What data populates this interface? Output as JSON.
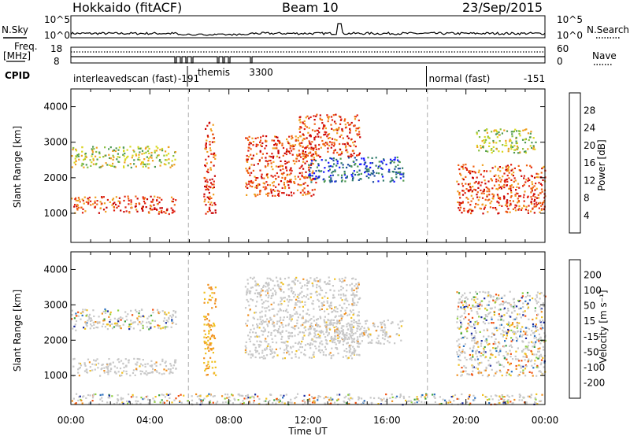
{
  "header": {
    "station": "Hokkaido (fitACF)",
    "beam": "Beam 10",
    "date": "23/Sep/2015"
  },
  "top_panels": {
    "nsky_label": "N.Sky",
    "nsearch_label": "N.Search",
    "freq_label": "Freq.",
    "freq_unit": "[MHz]",
    "nave_label": "Nave",
    "cpid_label": "CPID",
    "left_ticks_counts": [
      "10^5",
      "10^0"
    ],
    "right_ticks_counts": [
      "10^5",
      "10^0"
    ],
    "left_ticks_freq": [
      "18",
      "8"
    ],
    "right_ticks_nave": [
      "60",
      "0"
    ]
  },
  "cpid_segments": [
    {
      "label": "interleavedscan (fast)",
      "start_hour": 0.0
    },
    {
      "label": "-191",
      "start_hour": 5.3
    },
    {
      "label": "themis",
      "start_hour": 6.3
    },
    {
      "label": "3300",
      "start_hour": 8.9
    },
    {
      "label": "normal (fast)",
      "start_hour": 18.0
    },
    {
      "label": "-151",
      "start_hour": 22.8
    }
  ],
  "chart_data": [
    {
      "type": "heatmap",
      "title": "Power",
      "ylabel": "Slant Range [km]",
      "xlabel": "",
      "xlim": [
        0,
        24
      ],
      "ylim": [
        180,
        4500
      ],
      "yticks": [
        "1000",
        "2000",
        "3000",
        "4000"
      ],
      "colorbar_label": "Power [dB]",
      "colorbar_ticks": [
        "4",
        "8",
        "12",
        "16",
        "20",
        "24",
        "28"
      ],
      "colorbar_colors": [
        "#1414ff",
        "#1f4fa0",
        "#2e7a6a",
        "#4f9a50",
        "#88c040",
        "#d8d820",
        "#f0a020",
        "#f06010",
        "#e02010",
        "#c80000"
      ],
      "bands": [
        {
          "x_start": 0.0,
          "x_end": 5.3,
          "range_low": 1000,
          "range_high": 1500,
          "level": "high"
        },
        {
          "x_start": 0.0,
          "x_end": 5.3,
          "range_low": 2300,
          "range_high": 2900,
          "level": "mid"
        },
        {
          "x_start": 6.7,
          "x_end": 7.3,
          "range_low": 1000,
          "range_high": 3600,
          "level": "high"
        },
        {
          "x_start": 8.8,
          "x_end": 12.4,
          "range_low": 1500,
          "range_high": 3200,
          "level": "high"
        },
        {
          "x_start": 11.5,
          "x_end": 14.6,
          "range_low": 2600,
          "range_high": 3800,
          "level": "high"
        },
        {
          "x_start": 12.0,
          "x_end": 16.8,
          "range_low": 1900,
          "range_high": 2600,
          "level": "low"
        },
        {
          "x_start": 19.5,
          "x_end": 24.0,
          "range_low": 1000,
          "range_high": 2400,
          "level": "high"
        },
        {
          "x_start": 20.5,
          "x_end": 23.5,
          "range_low": 2700,
          "range_high": 3400,
          "level": "mid"
        }
      ]
    },
    {
      "type": "heatmap",
      "title": "Velocity",
      "ylabel": "Slant Range [km]",
      "xlabel": "Time UT",
      "xlim": [
        0,
        24
      ],
      "ylim": [
        180,
        4500
      ],
      "yticks": [
        "1000",
        "2000",
        "3000",
        "4000"
      ],
      "xticks": [
        "00:00",
        "04:00",
        "08:00",
        "12:00",
        "16:00",
        "20:00",
        "00:00"
      ],
      "colorbar_label": "Velocity [m s⁻¹]",
      "colorbar_ticks": [
        "200",
        "100",
        "50",
        "15",
        "-15",
        "-50",
        "-100",
        "-200"
      ],
      "colorbar_colors": [
        "#1a2aa0",
        "#2a70c0",
        "#40a040",
        "#90d040",
        "#c8c8c8",
        "#f0c020",
        "#f09020",
        "#f05010",
        "#e01010"
      ],
      "bands": [
        {
          "x_start": 0.0,
          "x_end": 5.3,
          "range_low": 1000,
          "range_high": 1500,
          "level": "ground"
        },
        {
          "x_start": 0.0,
          "x_end": 5.3,
          "range_low": 2300,
          "range_high": 2900,
          "level": "mixed"
        },
        {
          "x_start": 6.7,
          "x_end": 7.3,
          "range_low": 1000,
          "range_high": 3600,
          "level": "negative"
        },
        {
          "x_start": 8.8,
          "x_end": 14.6,
          "range_low": 1500,
          "range_high": 3800,
          "level": "ground"
        },
        {
          "x_start": 12.0,
          "x_end": 16.8,
          "range_low": 1900,
          "range_high": 2600,
          "level": "ground"
        },
        {
          "x_start": 19.5,
          "x_end": 24.0,
          "range_low": 1000,
          "range_high": 3400,
          "level": "mixed"
        },
        {
          "x_start": 0.0,
          "x_end": 24.0,
          "range_low": 200,
          "range_high": 500,
          "level": "mixed"
        }
      ]
    }
  ]
}
